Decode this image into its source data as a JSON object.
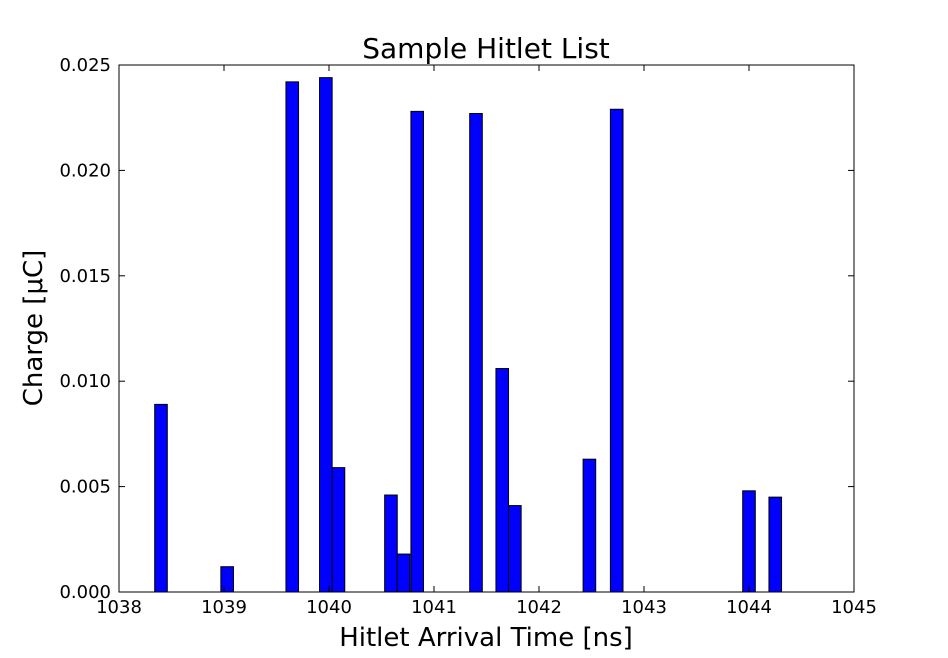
{
  "chart_data": {
    "type": "bar",
    "title": "Sample Hitlet List",
    "xlabel": "Hitlet Arrival Time [ns]",
    "ylabel": "Charge [μC]",
    "xlim": [
      1038,
      1045
    ],
    "ylim": [
      0,
      0.025
    ],
    "xticks": [
      1038,
      1039,
      1040,
      1041,
      1042,
      1043,
      1044,
      1045
    ],
    "xtick_labels": [
      "1038",
      "1039",
      "1040",
      "1041",
      "1042",
      "1043",
      "1044",
      "1045"
    ],
    "yticks": [
      0,
      0.005,
      0.01,
      0.015,
      0.02,
      0.025
    ],
    "ytick_labels": [
      "0.000",
      "0.005",
      "0.010",
      "0.015",
      "0.020",
      "0.025"
    ],
    "grid": false,
    "bar_color": "#0000ff",
    "bar_edge_color": "#000000",
    "bar_width": 0.12,
    "x": [
      1038.4,
      1039.03,
      1039.65,
      1039.97,
      1040.09,
      1040.59,
      1040.71,
      1040.84,
      1041.4,
      1041.65,
      1041.77,
      1042.48,
      1042.74,
      1044.0,
      1044.25
    ],
    "values": [
      0.0089,
      0.0012,
      0.0242,
      0.0244,
      0.0059,
      0.0046,
      0.0018,
      0.0228,
      0.0227,
      0.0106,
      0.0041,
      0.0063,
      0.0229,
      0.0048,
      0.0045
    ]
  }
}
